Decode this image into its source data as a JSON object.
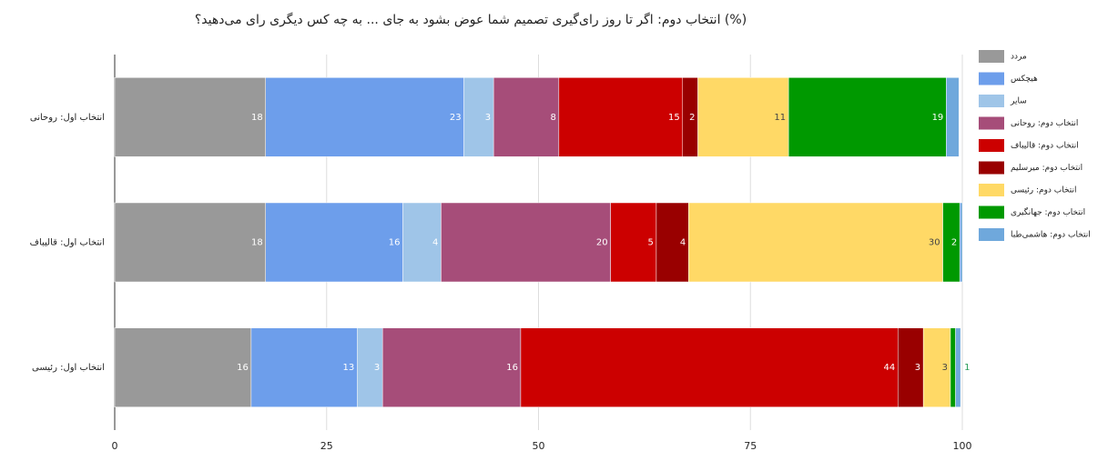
{
  "chart_data": {
    "type": "stacked-barh",
    "title": "انتخاب دوم: اگر تا روز رای‌گیری تصمیم شما عوض بشود به جای ... به چه کس دیگری رای می‌دهید؟ (%)",
    "categories": [
      "انتخاب اول: روحانی",
      "انتخاب اول: قالیباف",
      "انتخاب اول: رئیسی"
    ],
    "series": [
      {
        "name": "مردد",
        "color": "#999999",
        "values": [
          17.8,
          17.8,
          16.1
        ],
        "value_labels": [
          "18",
          "18",
          "16"
        ]
      },
      {
        "name": "هیچکس",
        "color": "#6d9eeb",
        "values": [
          23.4,
          16.2,
          12.5
        ],
        "value_labels": [
          "23",
          "16",
          "13"
        ]
      },
      {
        "name": "سایر",
        "color": "#9fc5e8",
        "values": [
          3.5,
          4.5,
          3
        ],
        "value_labels": [
          "3",
          "4",
          "3"
        ]
      },
      {
        "name": "انتخاب دوم: روحانی",
        "color": "#a64d79",
        "values": [
          7.7,
          20,
          16.3
        ],
        "value_labels": [
          "8",
          "20",
          "16"
        ]
      },
      {
        "name": "انتخاب دوم: قالیباف",
        "color": "#cc0000",
        "values": [
          14.6,
          5.4,
          44.5
        ],
        "value_labels": [
          "15",
          "5",
          "44"
        ]
      },
      {
        "name": "انتخاب دوم: میرسلیم",
        "color": "#990000",
        "values": [
          1.8,
          3.8,
          3
        ],
        "value_labels": [
          "2",
          "4",
          "3"
        ]
      },
      {
        "name": "انتخاب دوم: رئیسی",
        "color": "#ffd966",
        "values": [
          10.7,
          30,
          3.2
        ],
        "value_labels": [
          "11",
          "30",
          "3"
        ]
      },
      {
        "name": "انتخاب دوم: جهانگیری",
        "color": "#009900",
        "values": [
          18.6,
          2,
          0.6
        ],
        "value_labels": [
          "19",
          "2",
          null
        ]
      },
      {
        "name": "انتخاب دوم: هاشمی‌طبا",
        "color": "#6fa8dc",
        "values": [
          1.5,
          0.3,
          0.6
        ],
        "value_labels": [
          null,
          null,
          "1"
        ]
      }
    ],
    "xlim": [
      0,
      100
    ],
    "xticks": [
      0,
      25,
      50,
      75,
      100
    ],
    "grid": true,
    "legend": "right"
  }
}
